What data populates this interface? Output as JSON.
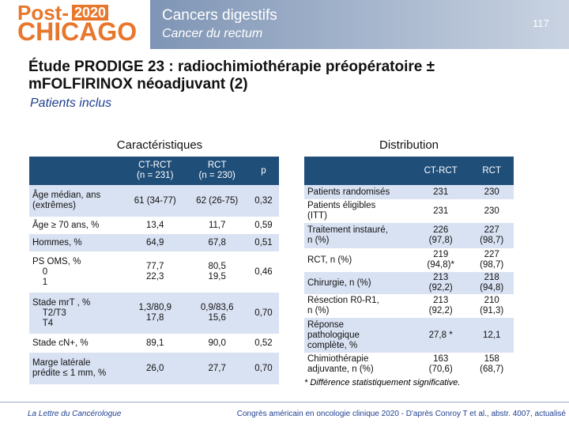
{
  "header": {
    "logo_word": "Post-",
    "logo_year": "2020",
    "logo_city": "CHICAGO",
    "title": "Cancers digestifs",
    "subtitle": "Cancer du rectum",
    "page": "117"
  },
  "main_title": "Étude PRODIGE 23 : radiochimiothérapie préopératoire ± mFOLFIRINOX néoadjuvant (2)",
  "section": "Patients inclus",
  "left_table": {
    "heading": "Caractéristiques",
    "columns": [
      "CT-RCT\n(n = 231)",
      "RCT\n(n = 230)",
      "p"
    ],
    "rows": [
      [
        "Âge médian, ans\n(extrêmes)",
        "61 (34-77)",
        "62 (26-75)",
        "0,32"
      ],
      [
        "Âge ≥ 70 ans, %",
        "13,4",
        "11,7",
        "0,59"
      ],
      [
        "Hommes, %",
        "64,9",
        "67,8",
        "0,51"
      ],
      [
        "PS OMS, %\n    0\n    1",
        "77,7\n22,3",
        "80,5\n19,5",
        "0,46"
      ],
      [
        "Stade mrT , %\n    T2/T3\n    T4",
        "1,3/80,9\n17,8",
        "0,9/83,6\n15,6",
        "0,70"
      ],
      [
        "Stade cN+, %",
        "89,1",
        "90,0",
        "0,52"
      ],
      [
        "Marge latérale\nprédite ≤ 1 mm, %",
        "26,0",
        "27,7",
        "0,70"
      ]
    ]
  },
  "right_table": {
    "heading": "Distribution",
    "columns": [
      "CT-RCT",
      "RCT"
    ],
    "rows": [
      [
        "Patients randomisés",
        "231",
        "230"
      ],
      [
        "Patients éligibles\n(ITT)",
        "231",
        "230"
      ],
      [
        "Traitement instauré,\nn (%)",
        "226\n(97,8)",
        "227\n(98,7)"
      ],
      [
        "RCT, n (%)",
        "219\n(94,8)*",
        "227\n(98,7)"
      ],
      [
        "Chirurgie, n (%)",
        "213\n(92,2)",
        "218\n(94,8)"
      ],
      [
        "Résection R0-R1,\nn (%)",
        "213\n(92,2)",
        "210\n(91,3)"
      ],
      [
        "Réponse\npathologique\ncomplète, %",
        "27,8 *",
        "12,1"
      ],
      [
        "Chimiothérapie\nadjuvante, n (%)",
        "163\n(70,6)",
        "158\n(68,7)"
      ]
    ]
  },
  "footnote": "* Différence statistiquement significative.",
  "footer": {
    "journal": "La Lettre du Cancérologue",
    "source": "Congrès américain en oncologie clinique 2020 - D'après Conroy T et al., abstr. 4007, actualisé"
  }
}
